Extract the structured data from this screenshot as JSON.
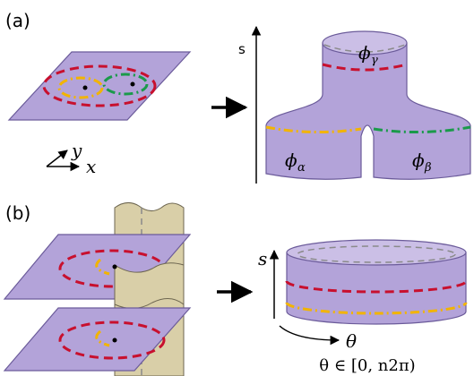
{
  "panel_a": {
    "label": "(a)",
    "axis_y": "y",
    "axis_x": "x",
    "axis_s": "s",
    "phi": "ϕ",
    "gamma": "γ",
    "alpha": "α",
    "beta": "β"
  },
  "panel_b": {
    "label": "(b)",
    "axis_s": "s",
    "theta": "θ",
    "theta_range": "θ ∈ [0, n2π)"
  }
}
